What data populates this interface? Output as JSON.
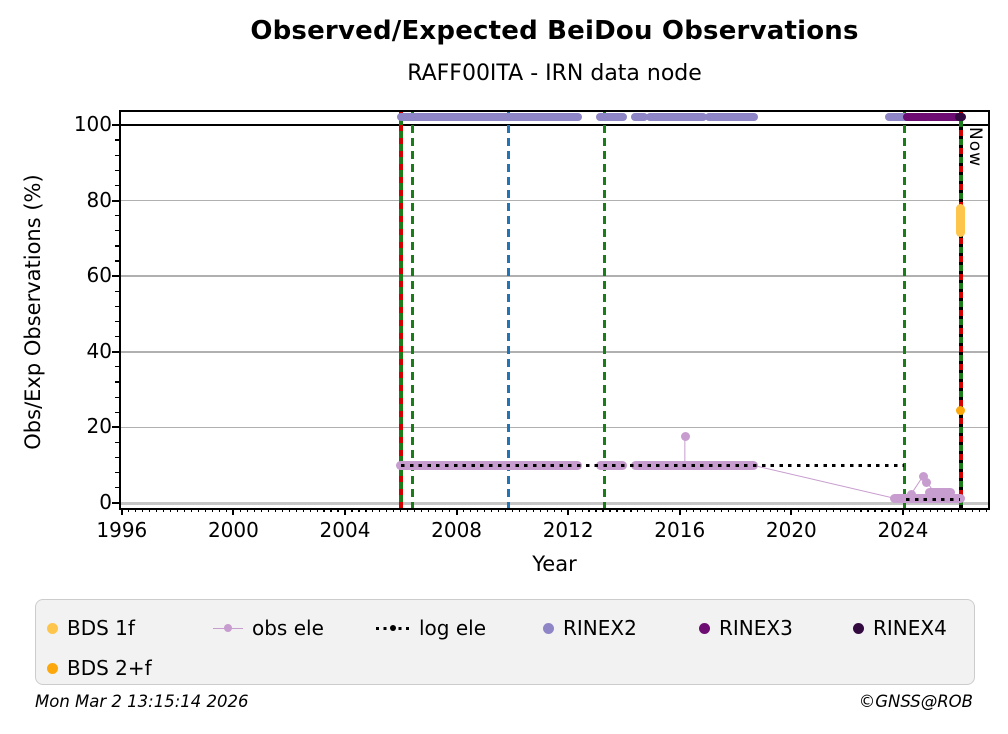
{
  "title": "Observed/Expected BeiDou Observations",
  "subtitle": "RAFF00ITA - IRN data node",
  "footer": {
    "timestamp": "Mon Mar  2 13:15:14 2026",
    "credit": "©GNSS@ROB"
  },
  "chart_data": {
    "type": "scatter",
    "title": "Observed/Expected BeiDou Observations",
    "subtitle": "RAFF00ITA - IRN data node",
    "xlabel": "Year",
    "ylabel": "Obs/Exp Observations (%)",
    "xlim": [
      1995.97,
      2027.05
    ],
    "ylim": [
      -1.32,
      103.42
    ],
    "xticks": [
      1996,
      2000,
      2004,
      2008,
      2012,
      2016,
      2020,
      2024
    ],
    "yticks": [
      0,
      20,
      40,
      60,
      80,
      100
    ],
    "grid": "horizontal",
    "reference_hline": 100,
    "now": {
      "label": "Now",
      "year": 2026.08
    },
    "legend_position": "bottom",
    "legend": [
      {
        "label": "BDS 1f",
        "marker": "dot",
        "color": "#fdc54c"
      },
      {
        "label": "obs ele",
        "marker": "dot-on-line",
        "color": "#c79cce"
      },
      {
        "label": "log ele",
        "marker": "dotted-line",
        "color": "#000000"
      },
      {
        "label": "RINEX2",
        "marker": "dot",
        "color": "#8d85c6"
      },
      {
        "label": "RINEX3",
        "marker": "dot",
        "color": "#6d0c72"
      },
      {
        "label": "RINEX4",
        "marker": "dot",
        "color": "#330a40"
      },
      {
        "label": "BDS 2+f",
        "marker": "dot",
        "color": "#fca80d"
      }
    ],
    "event_lines": [
      {
        "year": 2006.0,
        "style": "green-solid-red-dashed"
      },
      {
        "year": 2006.42,
        "style": "green-dashed"
      },
      {
        "year": 2009.85,
        "style": "blue-dashed"
      },
      {
        "year": 2013.3,
        "style": "green-dashed"
      },
      {
        "year": 2024.05,
        "style": "green-dashed"
      },
      {
        "year": 2026.08,
        "style": "now-black-red-green",
        "label": "Now"
      }
    ],
    "series_styles": {
      "BDS 1f": {
        "color": "#fdc54c",
        "size": 9
      },
      "BDS 2+f": {
        "color": "#fca80d",
        "size": 9
      },
      "obs ele": {
        "color": "#c79cce",
        "size": 9
      },
      "log ele": {
        "color": "#000000",
        "size": 3
      },
      "RINEX2": {
        "color": "#8d85c6",
        "size": 8
      },
      "RINEX3": {
        "color": "#6d0c72",
        "size": 8
      },
      "RINEX4": {
        "color": "#330a40",
        "size": 8
      }
    },
    "elements": [
      {
        "el": "path",
        "series": "obs ele",
        "points": [
          [
            2016.2,
            10
          ],
          [
            2016.2,
            17.7
          ]
        ]
      },
      {
        "el": "path",
        "series": "obs ele",
        "points": [
          [
            2018.65,
            10
          ],
          [
            2023.7,
            1.3
          ]
        ]
      },
      {
        "el": "path",
        "series": "obs ele",
        "points": [
          [
            2023.7,
            1.3
          ],
          [
            2024.3,
            2.2
          ],
          [
            2024.72,
            6.9
          ],
          [
            2024.86,
            5.3
          ],
          [
            2025.1,
            2.9
          ],
          [
            2025.75,
            2.0
          ],
          [
            2026.05,
            1.2
          ]
        ]
      },
      {
        "el": "dotrun",
        "series": "obs ele",
        "y": 10,
        "from": 2006.0,
        "to": 2012.35
      },
      {
        "el": "dotrun",
        "series": "obs ele",
        "y": 10,
        "from": 2013.15,
        "to": 2013.95
      },
      {
        "el": "dotrun",
        "series": "obs ele",
        "y": 10,
        "from": 2014.4,
        "to": 2018.65
      },
      {
        "el": "dotrun",
        "series": "obs ele",
        "y": 1.2,
        "from": 2023.7,
        "to": 2026.05
      },
      {
        "el": "dotrun",
        "series": "obs ele",
        "y": 2.9,
        "from": 2024.95,
        "to": 2025.7
      },
      {
        "el": "point",
        "series": "obs ele",
        "x": 2016.2,
        "y": 17.7
      },
      {
        "el": "point",
        "series": "obs ele",
        "x": 2024.3,
        "y": 2.2
      },
      {
        "el": "point",
        "series": "obs ele",
        "x": 2024.72,
        "y": 6.9
      },
      {
        "el": "point",
        "series": "obs ele",
        "x": 2024.86,
        "y": 5.3
      },
      {
        "el": "dotrun",
        "series": "RINEX2",
        "y": 102,
        "from": 2006.0,
        "to": 2012.35
      },
      {
        "el": "dotrun",
        "series": "RINEX2",
        "y": 102,
        "from": 2013.15,
        "to": 2013.95
      },
      {
        "el": "dotrun",
        "series": "RINEX2",
        "y": 102,
        "from": 2014.4,
        "to": 2014.72
      },
      {
        "el": "dotrun",
        "series": "RINEX2",
        "y": 102,
        "from": 2014.95,
        "to": 2016.85
      },
      {
        "el": "dotrun",
        "series": "RINEX2",
        "y": 102,
        "from": 2017.05,
        "to": 2018.65
      },
      {
        "el": "dotrun",
        "series": "RINEX2",
        "y": 102,
        "from": 2023.5,
        "to": 2024.1
      },
      {
        "el": "dotrun",
        "series": "RINEX3",
        "y": 102,
        "from": 2024.15,
        "to": 2024.85
      },
      {
        "el": "dotrun",
        "series": "RINEX3",
        "y": 102,
        "from": 2024.95,
        "to": 2026.0
      },
      {
        "el": "dotrun",
        "series": "RINEX4",
        "y": 102,
        "from": 2026.0,
        "to": 2026.12
      },
      {
        "el": "dotline",
        "series": "log ele",
        "y": 10,
        "from": 2006.0,
        "to": 2024.05
      },
      {
        "el": "dotline",
        "series": "log ele",
        "y": 0.9,
        "from": 2024.1,
        "to": 2026.05
      },
      {
        "el": "vrun",
        "series": "BDS 1f",
        "x": 2026.05,
        "from": 71.5,
        "to": 78
      },
      {
        "el": "point",
        "series": "BDS 2+f",
        "x": 2026.05,
        "y": 24.5
      }
    ]
  }
}
